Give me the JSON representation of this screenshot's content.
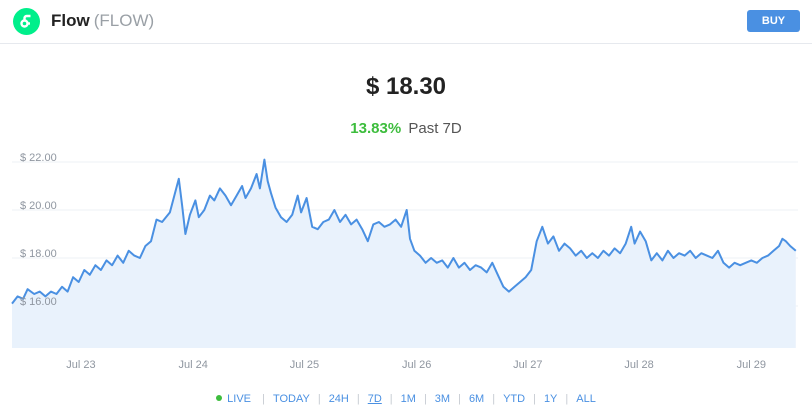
{
  "header": {
    "name": "Flow",
    "symbol": "(FLOW)",
    "buy_label": "BUY"
  },
  "summary": {
    "price": "$ 18.30",
    "change": "13.83%",
    "period": "Past 7D"
  },
  "colors": {
    "line": "#4a90e2",
    "area": "#e9f2fc",
    "positive": "#3dbd3d",
    "brand": "#00ef8b"
  },
  "ranges": {
    "live": "LIVE",
    "items": [
      "TODAY",
      "24H",
      "7D",
      "1M",
      "3M",
      "6M",
      "YTD",
      "1Y",
      "ALL"
    ],
    "active": "7D"
  },
  "chart_data": {
    "type": "area",
    "title": "",
    "xlabel": "",
    "ylabel": "",
    "x_unit": "days since start of window",
    "xlim": [
      0,
      7.07
    ],
    "ylim": [
      14.25,
      22.5
    ],
    "grid": true,
    "y_ticks": [
      16,
      18,
      20,
      22
    ],
    "y_tick_labels": [
      "$ 16.00",
      "$ 18.00",
      "$ 20.00",
      "$ 22.00"
    ],
    "x_ticks": [
      0.62,
      1.63,
      2.63,
      3.64,
      4.64,
      5.64,
      6.65
    ],
    "x_tick_labels": [
      "Jul 23",
      "Jul 24",
      "Jul 25",
      "Jul 26",
      "Jul 27",
      "Jul 28",
      "Jul 29"
    ],
    "series": [
      {
        "name": "",
        "points": [
          [
            0,
            16.1
          ],
          [
            0.05,
            16.4
          ],
          [
            0.1,
            16.3
          ],
          [
            0.14,
            16.7
          ],
          [
            0.2,
            16.5
          ],
          [
            0.25,
            16.6
          ],
          [
            0.3,
            16.4
          ],
          [
            0.35,
            16.6
          ],
          [
            0.4,
            16.5
          ],
          [
            0.45,
            16.8
          ],
          [
            0.5,
            16.6
          ],
          [
            0.55,
            17.2
          ],
          [
            0.6,
            17.0
          ],
          [
            0.65,
            17.5
          ],
          [
            0.7,
            17.3
          ],
          [
            0.75,
            17.7
          ],
          [
            0.8,
            17.5
          ],
          [
            0.85,
            17.9
          ],
          [
            0.9,
            17.7
          ],
          [
            0.95,
            18.1
          ],
          [
            1.0,
            17.8
          ],
          [
            1.05,
            18.3
          ],
          [
            1.1,
            18.1
          ],
          [
            1.15,
            18.0
          ],
          [
            1.2,
            18.5
          ],
          [
            1.25,
            18.7
          ],
          [
            1.3,
            19.6
          ],
          [
            1.35,
            19.5
          ],
          [
            1.42,
            19.9
          ],
          [
            1.5,
            21.3
          ],
          [
            1.53,
            20.2
          ],
          [
            1.56,
            19.0
          ],
          [
            1.6,
            19.8
          ],
          [
            1.65,
            20.4
          ],
          [
            1.68,
            19.7
          ],
          [
            1.73,
            20.0
          ],
          [
            1.78,
            20.6
          ],
          [
            1.82,
            20.4
          ],
          [
            1.87,
            20.9
          ],
          [
            1.92,
            20.6
          ],
          [
            1.97,
            20.2
          ],
          [
            2.02,
            20.6
          ],
          [
            2.07,
            21.0
          ],
          [
            2.1,
            20.5
          ],
          [
            2.15,
            20.9
          ],
          [
            2.2,
            21.5
          ],
          [
            2.23,
            20.9
          ],
          [
            2.27,
            22.1
          ],
          [
            2.3,
            21.2
          ],
          [
            2.33,
            20.7
          ],
          [
            2.37,
            20.1
          ],
          [
            2.42,
            19.7
          ],
          [
            2.47,
            19.5
          ],
          [
            2.52,
            19.8
          ],
          [
            2.57,
            20.6
          ],
          [
            2.6,
            19.9
          ],
          [
            2.65,
            20.5
          ],
          [
            2.7,
            19.3
          ],
          [
            2.75,
            19.2
          ],
          [
            2.8,
            19.5
          ],
          [
            2.85,
            19.6
          ],
          [
            2.9,
            20.0
          ],
          [
            2.95,
            19.5
          ],
          [
            3.0,
            19.8
          ],
          [
            3.05,
            19.4
          ],
          [
            3.1,
            19.6
          ],
          [
            3.15,
            19.2
          ],
          [
            3.2,
            18.7
          ],
          [
            3.25,
            19.4
          ],
          [
            3.3,
            19.5
          ],
          [
            3.35,
            19.3
          ],
          [
            3.4,
            19.4
          ],
          [
            3.45,
            19.6
          ],
          [
            3.5,
            19.3
          ],
          [
            3.55,
            20.0
          ],
          [
            3.58,
            18.8
          ],
          [
            3.62,
            18.3
          ],
          [
            3.67,
            18.1
          ],
          [
            3.72,
            17.8
          ],
          [
            3.77,
            18.0
          ],
          [
            3.82,
            17.8
          ],
          [
            3.87,
            17.9
          ],
          [
            3.92,
            17.6
          ],
          [
            3.97,
            18.0
          ],
          [
            4.02,
            17.6
          ],
          [
            4.07,
            17.8
          ],
          [
            4.12,
            17.5
          ],
          [
            4.17,
            17.7
          ],
          [
            4.22,
            17.6
          ],
          [
            4.27,
            17.4
          ],
          [
            4.32,
            17.8
          ],
          [
            4.37,
            17.3
          ],
          [
            4.42,
            16.8
          ],
          [
            4.47,
            16.6
          ],
          [
            4.52,
            16.8
          ],
          [
            4.57,
            17.0
          ],
          [
            4.62,
            17.2
          ],
          [
            4.67,
            17.5
          ],
          [
            4.72,
            18.7
          ],
          [
            4.77,
            19.3
          ],
          [
            4.82,
            18.6
          ],
          [
            4.87,
            18.9
          ],
          [
            4.92,
            18.3
          ],
          [
            4.97,
            18.6
          ],
          [
            5.02,
            18.4
          ],
          [
            5.07,
            18.1
          ],
          [
            5.12,
            18.3
          ],
          [
            5.17,
            18.0
          ],
          [
            5.22,
            18.2
          ],
          [
            5.27,
            18.0
          ],
          [
            5.32,
            18.3
          ],
          [
            5.37,
            18.1
          ],
          [
            5.42,
            18.4
          ],
          [
            5.47,
            18.2
          ],
          [
            5.52,
            18.6
          ],
          [
            5.57,
            19.3
          ],
          [
            5.6,
            18.6
          ],
          [
            5.65,
            19.1
          ],
          [
            5.7,
            18.7
          ],
          [
            5.75,
            17.9
          ],
          [
            5.8,
            18.2
          ],
          [
            5.85,
            17.9
          ],
          [
            5.9,
            18.3
          ],
          [
            5.95,
            18.0
          ],
          [
            6.0,
            18.2
          ],
          [
            6.05,
            18.1
          ],
          [
            6.1,
            18.3
          ],
          [
            6.15,
            18.0
          ],
          [
            6.2,
            18.2
          ],
          [
            6.25,
            18.1
          ],
          [
            6.3,
            18.0
          ],
          [
            6.35,
            18.3
          ],
          [
            6.4,
            17.8
          ],
          [
            6.45,
            17.6
          ],
          [
            6.5,
            17.8
          ],
          [
            6.55,
            17.7
          ],
          [
            6.6,
            17.8
          ],
          [
            6.65,
            17.9
          ],
          [
            6.7,
            17.8
          ],
          [
            6.75,
            18.0
          ],
          [
            6.8,
            18.1
          ],
          [
            6.85,
            18.3
          ],
          [
            6.9,
            18.5
          ],
          [
            6.93,
            18.8
          ],
          [
            6.96,
            18.7
          ],
          [
            7.0,
            18.5
          ],
          [
            7.05,
            18.3
          ]
        ]
      }
    ]
  }
}
